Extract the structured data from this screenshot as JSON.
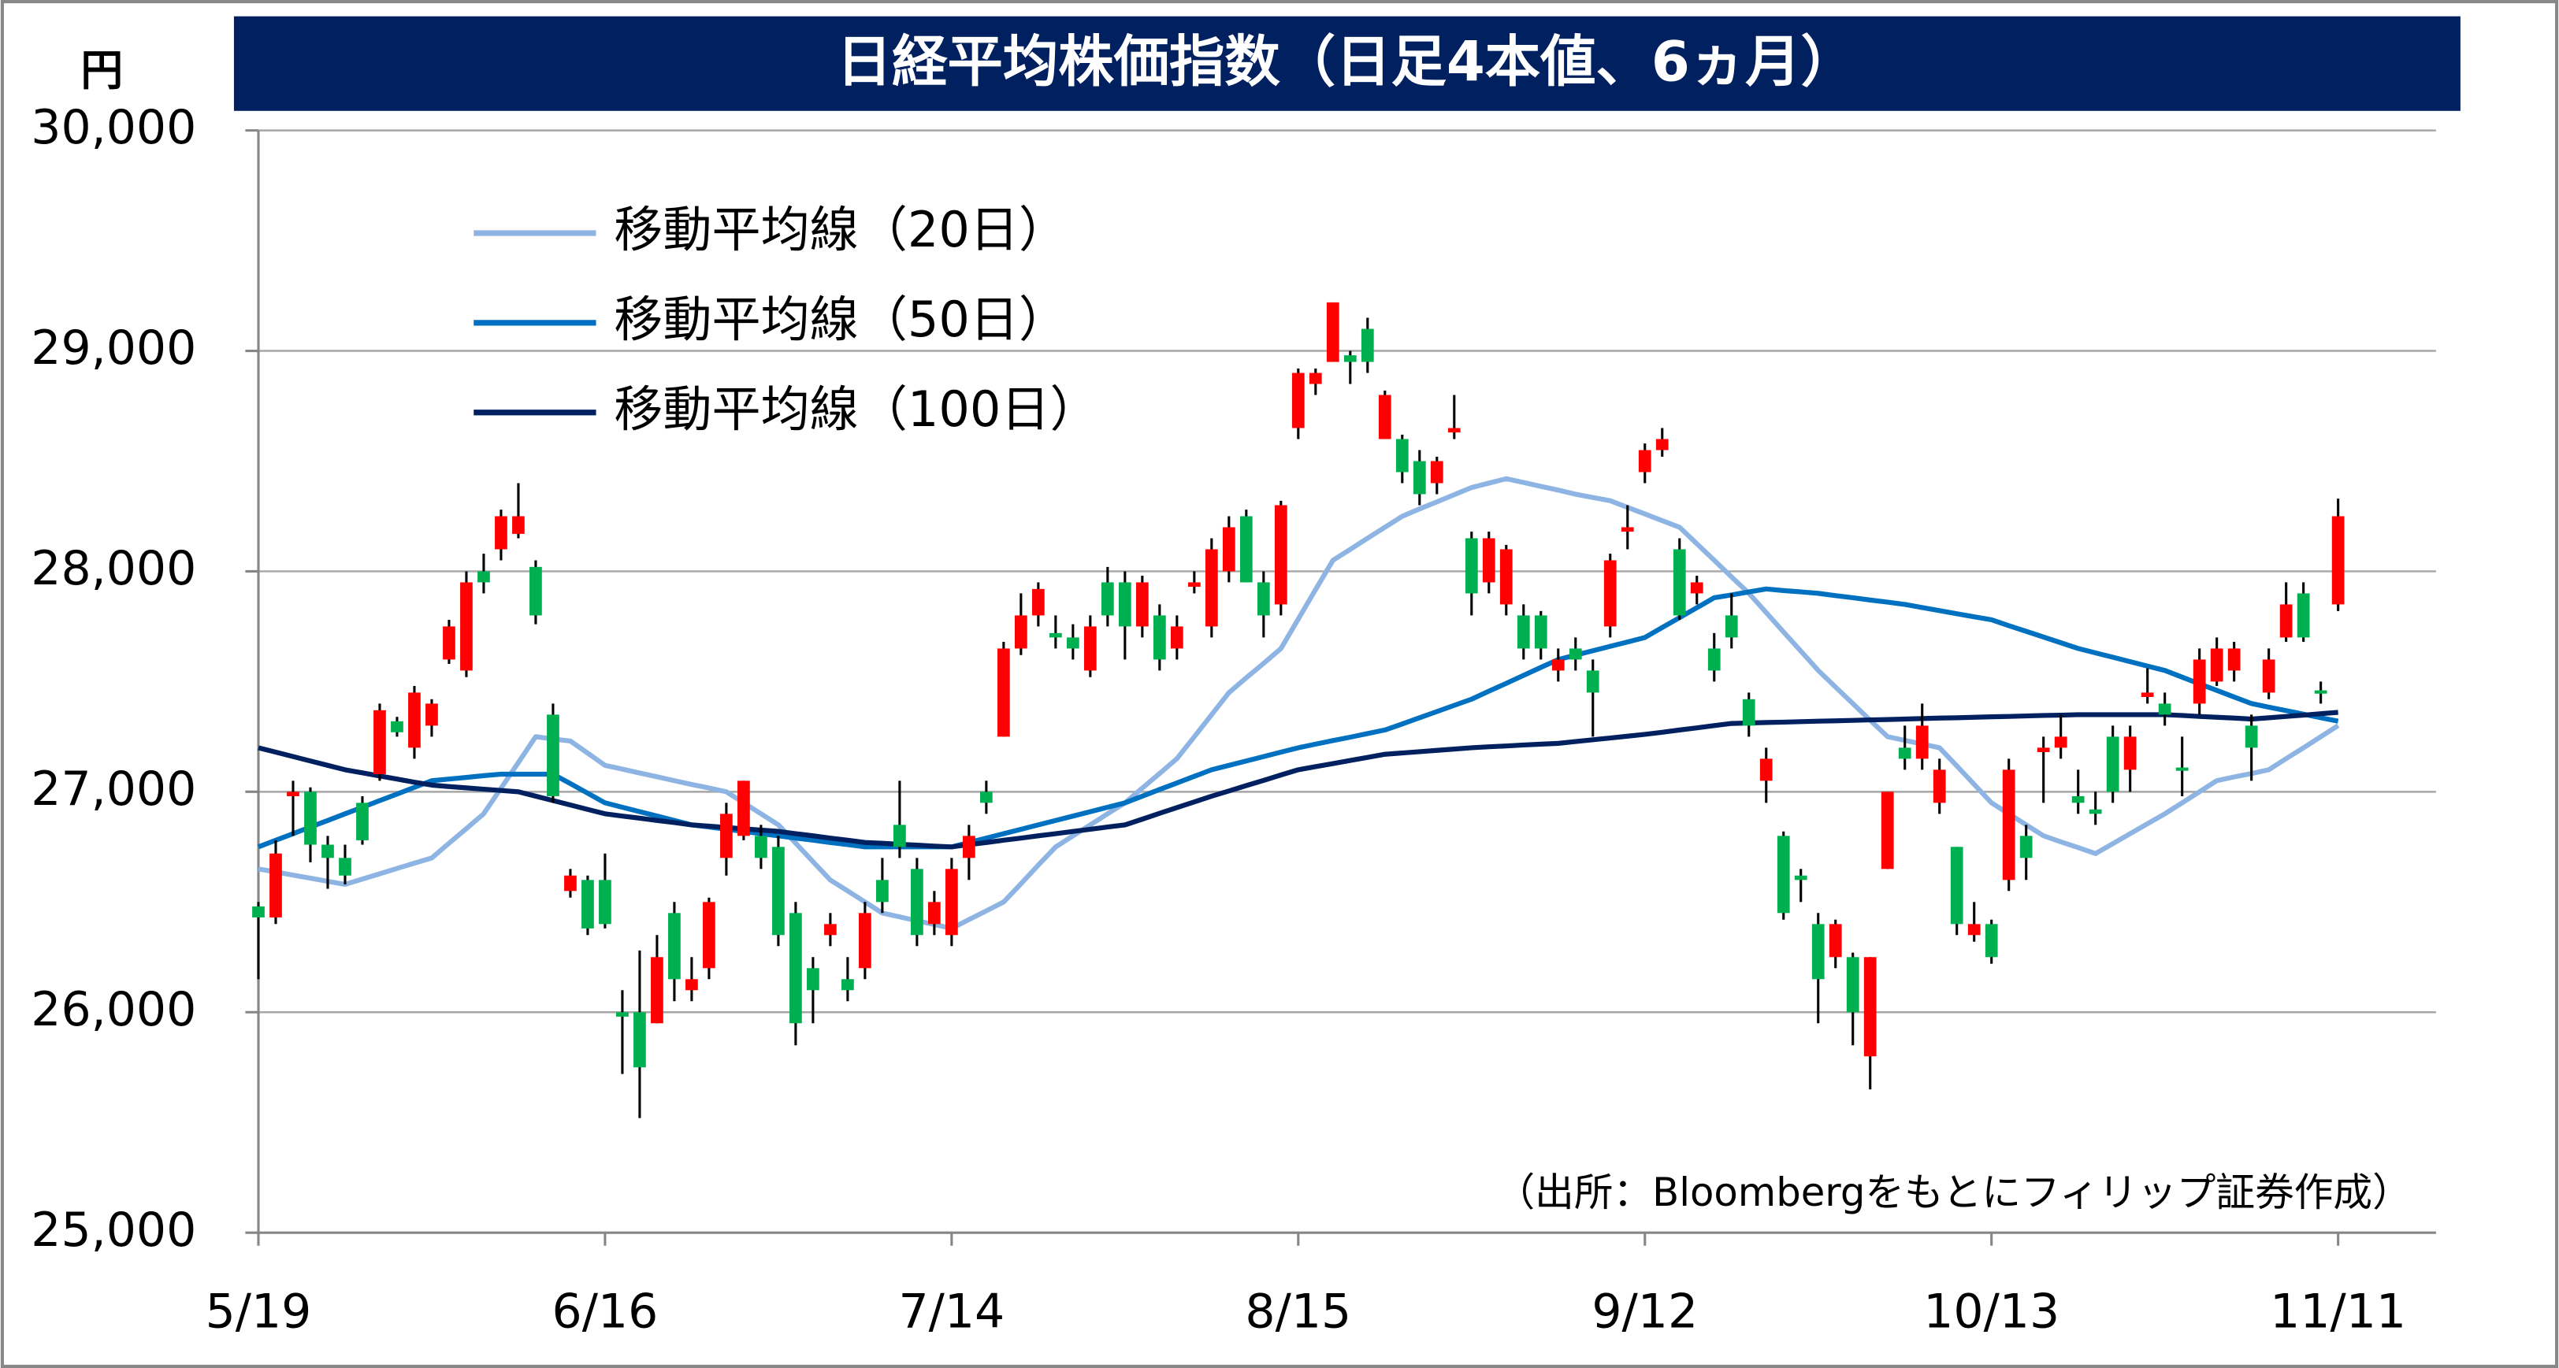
{
  "chart_data": {
    "type": "candlestick",
    "title": "日経平均株価指数（日足4本値、6ヵ月）",
    "y_unit": "円",
    "source": "（出所：Bloombergをもとにフィリップ証券作成）",
    "up_color": "#ff0000",
    "down_color": "#00b050",
    "ylim": [
      25000,
      30000
    ],
    "yticks": [
      {
        "value": 25000,
        "label": "25,000"
      },
      {
        "value": 26000,
        "label": "26,000"
      },
      {
        "value": 27000,
        "label": "27,000"
      },
      {
        "value": 28000,
        "label": "28,000"
      },
      {
        "value": 29000,
        "label": "29,000"
      },
      {
        "value": 30000,
        "label": "30,000"
      }
    ],
    "grid": true,
    "categories": [
      "5/19",
      null,
      null,
      null,
      null,
      null,
      null,
      null,
      null,
      null,
      null,
      null,
      null,
      null,
      null,
      null,
      null,
      null,
      null,
      null,
      "6/16",
      null,
      null,
      null,
      null,
      null,
      null,
      null,
      null,
      null,
      null,
      null,
      null,
      null,
      null,
      null,
      null,
      null,
      null,
      null,
      "7/14",
      null,
      null,
      null,
      null,
      null,
      null,
      null,
      null,
      null,
      null,
      null,
      null,
      null,
      null,
      null,
      null,
      null,
      null,
      null,
      "8/15",
      null,
      null,
      null,
      null,
      null,
      null,
      null,
      null,
      null,
      null,
      null,
      null,
      null,
      null,
      null,
      null,
      null,
      null,
      null,
      "9/12",
      null,
      null,
      null,
      null,
      null,
      null,
      null,
      null,
      null,
      null,
      null,
      null,
      null,
      null,
      null,
      null,
      null,
      null,
      null,
      "10/13",
      null,
      null,
      null,
      null,
      null,
      null,
      null,
      null,
      null,
      null,
      null,
      null,
      null,
      null,
      null,
      null,
      null,
      null,
      null,
      "11/11"
    ],
    "ohlc": [
      [
        26480,
        26500,
        26150,
        26430
      ],
      [
        26430,
        26780,
        26400,
        26720
      ],
      [
        26980,
        27050,
        26800,
        27000
      ],
      [
        27000,
        27020,
        26680,
        26760
      ],
      [
        26760,
        26800,
        26560,
        26700
      ],
      [
        26700,
        26760,
        26580,
        26620
      ],
      [
        26950,
        26980,
        26760,
        26780
      ],
      [
        27080,
        27400,
        27050,
        27370
      ],
      [
        27320,
        27340,
        27250,
        27270
      ],
      [
        27200,
        27480,
        27150,
        27450
      ],
      [
        27300,
        27420,
        27250,
        27400
      ],
      [
        27600,
        27780,
        27580,
        27750
      ],
      [
        27550,
        28000,
        27520,
        27950
      ],
      [
        28000,
        28080,
        27900,
        27950
      ],
      [
        28100,
        28280,
        28050,
        28250
      ],
      [
        28170,
        28400,
        28150,
        28250
      ],
      [
        28020,
        28050,
        27760,
        27800
      ],
      [
        27350,
        27400,
        26950,
        26980
      ],
      [
        26550,
        26650,
        26520,
        26620
      ],
      [
        26600,
        26620,
        26350,
        26380
      ],
      [
        26600,
        26720,
        26380,
        26400
      ],
      [
        26000,
        26100,
        25720,
        25980
      ],
      [
        26000,
        26280,
        25520,
        25750
      ],
      [
        25950,
        26350,
        25950,
        26250
      ],
      [
        26450,
        26500,
        26050,
        26150
      ],
      [
        26100,
        26250,
        26050,
        26150
      ],
      [
        26200,
        26520,
        26150,
        26500
      ],
      [
        26700,
        26950,
        26620,
        26900
      ],
      [
        26800,
        27050,
        26780,
        27050
      ],
      [
        26800,
        26850,
        26650,
        26700
      ],
      [
        26750,
        26800,
        26300,
        26350
      ],
      [
        26450,
        26500,
        25850,
        25950
      ],
      [
        26200,
        26250,
        25950,
        26100
      ],
      [
        26350,
        26450,
        26300,
        26400
      ],
      [
        26150,
        26250,
        26050,
        26100
      ],
      [
        26200,
        26500,
        26150,
        26450
      ],
      [
        26600,
        26700,
        26450,
        26500
      ],
      [
        26850,
        27050,
        26700,
        26750
      ],
      [
        26650,
        26700,
        26300,
        26350
      ],
      [
        26400,
        26550,
        26350,
        26500
      ],
      [
        26350,
        26700,
        26300,
        26650
      ],
      [
        26700,
        26850,
        26600,
        26800
      ],
      [
        27000,
        27050,
        26900,
        26950
      ],
      [
        27250,
        27680,
        27250,
        27650
      ],
      [
        27650,
        27900,
        27620,
        27800
      ],
      [
        27800,
        27950,
        27750,
        27920
      ],
      [
        27720,
        27800,
        27650,
        27700
      ],
      [
        27700,
        27760,
        27600,
        27650
      ],
      [
        27550,
        27800,
        27520,
        27750
      ],
      [
        27950,
        28020,
        27750,
        27800
      ],
      [
        27950,
        28000,
        27600,
        27750
      ],
      [
        27750,
        27980,
        27700,
        27950
      ],
      [
        27800,
        27850,
        27550,
        27600
      ],
      [
        27650,
        27800,
        27600,
        27750
      ],
      [
        27930,
        28000,
        27900,
        27950
      ],
      [
        27750,
        28150,
        27700,
        28100
      ],
      [
        28000,
        28250,
        27950,
        28200
      ],
      [
        28250,
        28280,
        27950,
        27950
      ],
      [
        27950,
        28000,
        27700,
        27800
      ],
      [
        27850,
        28320,
        27800,
        28300
      ],
      [
        28650,
        28920,
        28600,
        28900
      ],
      [
        28850,
        28920,
        28800,
        28900
      ],
      [
        28950,
        29220,
        28950,
        29220
      ],
      [
        28980,
        29000,
        28850,
        28950
      ],
      [
        29100,
        29150,
        28900,
        28950
      ],
      [
        28600,
        28820,
        28600,
        28800
      ],
      [
        28600,
        28620,
        28400,
        28450
      ],
      [
        28500,
        28550,
        28300,
        28350
      ],
      [
        28400,
        28520,
        28350,
        28500
      ],
      [
        28630,
        28800,
        28600,
        28650
      ],
      [
        28150,
        28180,
        27800,
        27900
      ],
      [
        27950,
        28180,
        27900,
        28150
      ],
      [
        27850,
        28120,
        27800,
        28100
      ],
      [
        27800,
        27850,
        27600,
        27650
      ],
      [
        27800,
        27820,
        27600,
        27650
      ],
      [
        27550,
        27650,
        27500,
        27600
      ],
      [
        27650,
        27700,
        27550,
        27600
      ],
      [
        27550,
        27600,
        27250,
        27450
      ],
      [
        27750,
        28080,
        27700,
        28050
      ],
      [
        28180,
        28300,
        28100,
        28200
      ],
      [
        28450,
        28580,
        28400,
        28550
      ],
      [
        28550,
        28650,
        28520,
        28600
      ],
      [
        28100,
        28150,
        27780,
        27800
      ],
      [
        27900,
        27980,
        27850,
        27950
      ],
      [
        27650,
        27720,
        27500,
        27550
      ],
      [
        27800,
        27900,
        27650,
        27700
      ],
      [
        27420,
        27450,
        27250,
        27300
      ],
      [
        27050,
        27200,
        26950,
        27150
      ],
      [
        26800,
        26820,
        26420,
        26450
      ],
      [
        26620,
        26650,
        26500,
        26600
      ],
      [
        26400,
        26450,
        25950,
        26150
      ],
      [
        26250,
        26420,
        26200,
        26400
      ],
      [
        26250,
        26270,
        25850,
        26000
      ],
      [
        25800,
        26250,
        25650,
        26250
      ],
      [
        26650,
        27000,
        26650,
        27000
      ],
      [
        27200,
        27300,
        27100,
        27150
      ],
      [
        27150,
        27400,
        27100,
        27300
      ],
      [
        26950,
        27150,
        26900,
        27100
      ],
      [
        26750,
        26750,
        26350,
        26400
      ],
      [
        26350,
        26500,
        26320,
        26400
      ],
      [
        26400,
        26420,
        26220,
        26250
      ],
      [
        26600,
        27150,
        26550,
        27100
      ],
      [
        26800,
        26850,
        26600,
        26700
      ],
      [
        27180,
        27250,
        26950,
        27200
      ],
      [
        27200,
        27350,
        27150,
        27250
      ],
      [
        26980,
        27100,
        26900,
        26950
      ],
      [
        26920,
        27000,
        26850,
        26900
      ],
      [
        27250,
        27300,
        26950,
        27000
      ],
      [
        27100,
        27300,
        27000,
        27250
      ],
      [
        27430,
        27560,
        27400,
        27450
      ],
      [
        27400,
        27450,
        27300,
        27350
      ],
      [
        27110,
        27250,
        26980,
        27100
      ],
      [
        27400,
        27650,
        27350,
        27600
      ],
      [
        27500,
        27700,
        27480,
        27650
      ],
      [
        27550,
        27680,
        27500,
        27650
      ],
      [
        27300,
        27350,
        27050,
        27200
      ],
      [
        27450,
        27650,
        27420,
        27600
      ],
      [
        27700,
        27950,
        27680,
        27850
      ],
      [
        27900,
        27950,
        27680,
        27700
      ],
      [
        27460,
        27500,
        27400,
        27450
      ],
      [
        27850,
        28330,
        27820,
        28250
      ]
    ],
    "series": [
      {
        "name": "移動平均線（20日）",
        "color": "#8db4e2",
        "values": [
          26650,
          26636,
          26622,
          26608,
          26594,
          26580,
          26604,
          26628,
          26652,
          26676,
          26700,
          26767,
          26833,
          26900,
          27017,
          27133,
          27250,
          27240,
          27230,
          27175,
          27120,
          27103,
          27085,
          27068,
          27050,
          27033,
          27017,
          27000,
          26950,
          26900,
          26850,
          26767,
          26683,
          26600,
          26550,
          26500,
          26450,
          26433,
          26415,
          26398,
          26380,
          26420,
          26460,
          26500,
          26583,
          26667,
          26750,
          26800,
          26850,
          26900,
          26950,
          27017,
          27083,
          27150,
          27250,
          27350,
          27450,
          27517,
          27583,
          27650,
          27783,
          27917,
          28050,
          28100,
          28150,
          28200,
          28250,
          28283,
          28315,
          28348,
          28380,
          28400,
          28420,
          28403,
          28385,
          28368,
          28350,
          28335,
          28320,
          28290,
          28260,
          28230,
          28200,
          28125,
          28050,
          27975,
          27900,
          27813,
          27725,
          27638,
          27550,
          27475,
          27400,
          27325,
          27250,
          27233,
          27217,
          27200,
          27117,
          27033,
          26950,
          26900,
          26850,
          26800,
          26773,
          26747,
          26720,
          26765,
          26810,
          26855,
          26900,
          26950,
          27000,
          27050,
          27067,
          27083,
          27100,
          27150,
          27200,
          27250,
          27300
        ]
      },
      {
        "name": "移動平均線（50日）",
        "color": "#0070c0",
        "values": [
          26750,
          26780,
          26810,
          26840,
          26870,
          26900,
          26930,
          26960,
          26990,
          27020,
          27050,
          27058,
          27065,
          27073,
          27080,
          27080,
          27080,
          27080,
          27037,
          26993,
          26950,
          26930,
          26910,
          26890,
          26870,
          26850,
          26840,
          26830,
          26820,
          26810,
          26800,
          26790,
          26780,
          26770,
          26760,
          26750,
          26750,
          26750,
          26750,
          26750,
          26750,
          26770,
          26790,
          26810,
          26830,
          26850,
          26870,
          26890,
          26910,
          26930,
          26950,
          26980,
          27010,
          27040,
          27070,
          27100,
          27120,
          27140,
          27160,
          27180,
          27200,
          27216,
          27232,
          27248,
          27264,
          27280,
          27308,
          27336,
          27364,
          27392,
          27420,
          27456,
          27492,
          27528,
          27564,
          27600,
          27620,
          27640,
          27660,
          27680,
          27700,
          27745,
          27790,
          27835,
          27880,
          27893,
          27907,
          27920,
          27913,
          27907,
          27900,
          27890,
          27880,
          27870,
          27860,
          27850,
          27836,
          27822,
          27808,
          27794,
          27780,
          27754,
          27728,
          27702,
          27676,
          27650,
          27630,
          27610,
          27590,
          27570,
          27550,
          27520,
          27490,
          27460,
          27430,
          27400,
          27384,
          27368,
          27352,
          27336,
          27320
        ]
      },
      {
        "name": "移動平均線（100日）",
        "color": "#002060",
        "values": [
          27200,
          27180,
          27160,
          27140,
          27120,
          27100,
          27086,
          27072,
          27058,
          27044,
          27030,
          27024,
          27018,
          27012,
          27006,
          27000,
          26980,
          26960,
          26940,
          26920,
          26900,
          26890,
          26880,
          26870,
          26860,
          26850,
          26844,
          26838,
          26832,
          26826,
          26820,
          26810,
          26800,
          26790,
          26780,
          26770,
          26766,
          26762,
          26758,
          26754,
          26750,
          26760,
          26770,
          26780,
          26790,
          26800,
          26810,
          26820,
          26830,
          26840,
          26850,
          26876,
          26902,
          26928,
          26954,
          26980,
          27004,
          27028,
          27052,
          27076,
          27100,
          27114,
          27128,
          27142,
          27156,
          27170,
          27176,
          27182,
          27188,
          27194,
          27200,
          27204,
          27208,
          27212,
          27216,
          27220,
          27228,
          27236,
          27244,
          27252,
          27260,
          27270,
          27280,
          27290,
          27300,
          27310,
          27312,
          27314,
          27316,
          27318,
          27320,
          27322,
          27324,
          27326,
          27328,
          27330,
          27332,
          27334,
          27336,
          27338,
          27340,
          27342,
          27344,
          27346,
          27348,
          27350,
          27350,
          27350,
          27350,
          27350,
          27350,
          27346,
          27342,
          27338,
          27334,
          27330,
          27336,
          27342,
          27348,
          27354,
          27360
        ]
      }
    ]
  }
}
